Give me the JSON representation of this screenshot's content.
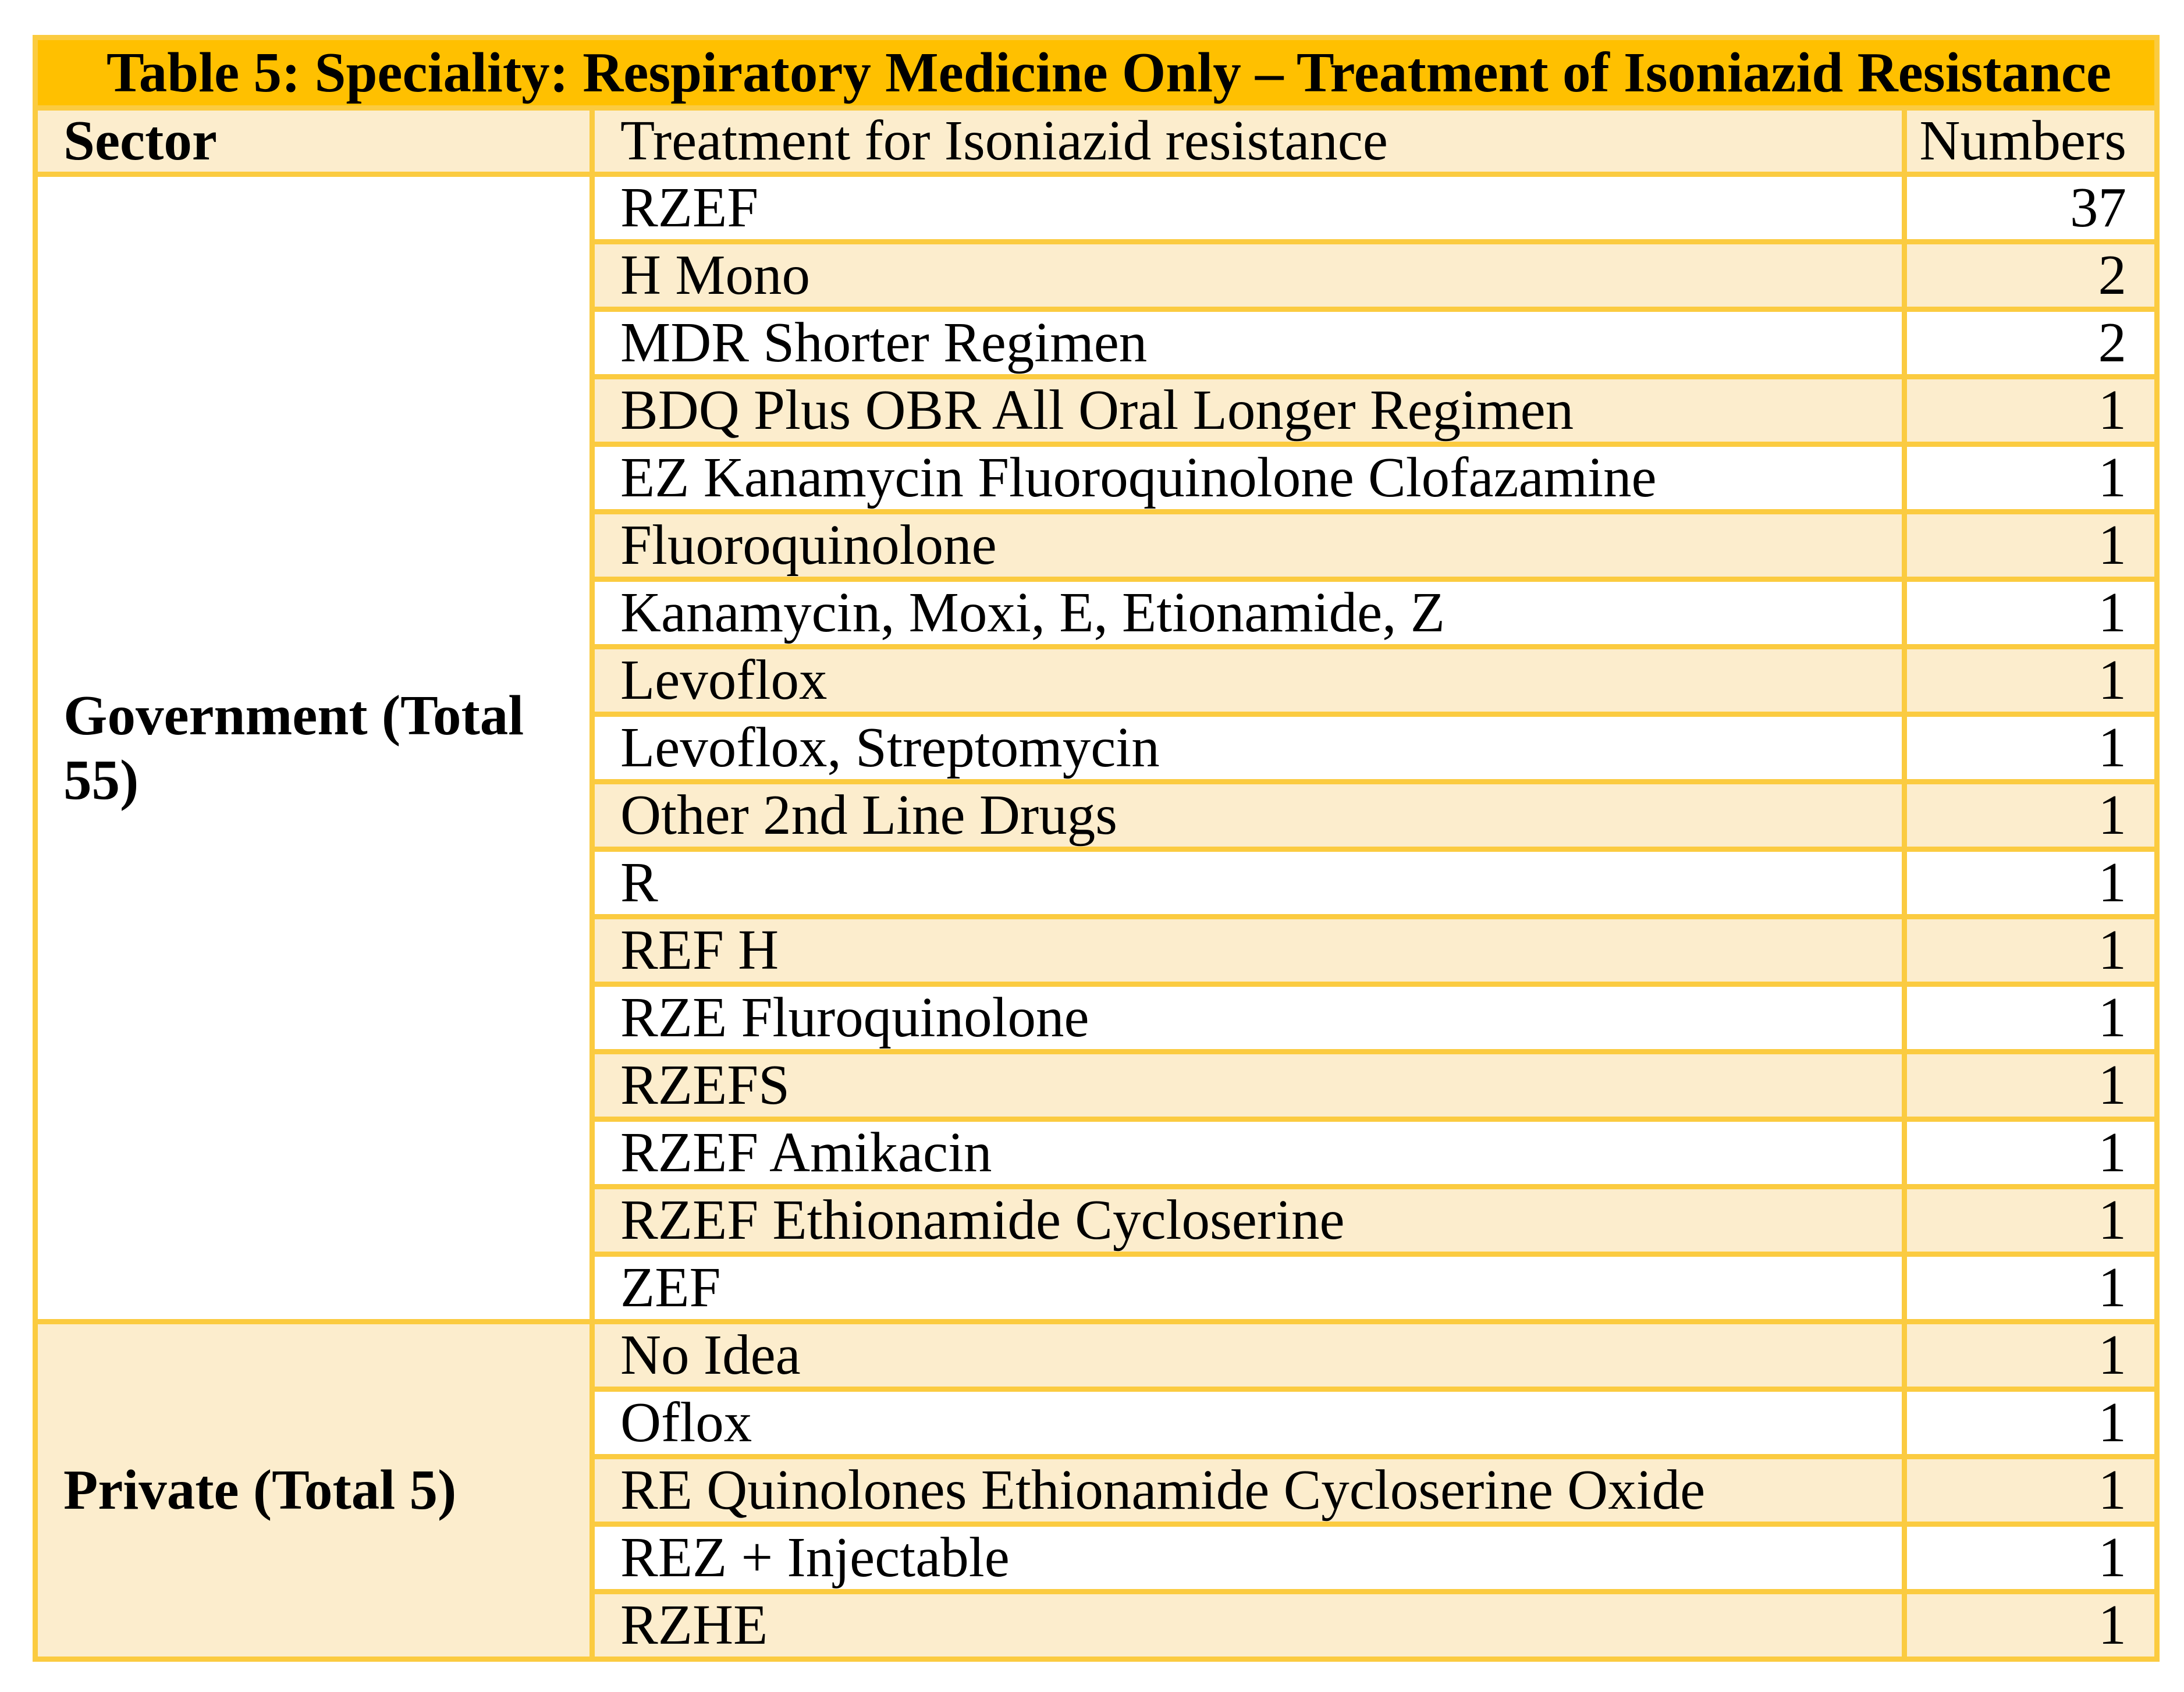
{
  "title": "Table 5: Speciality: Respiratory Medicine Only – Treatment of Isoniazid Resistance",
  "columns": {
    "sector": "Sector",
    "treatment": "Treatment for Isoniazid resistance",
    "numbers": "Numbers"
  },
  "sections": [
    {
      "sector": "Government (Total 55)",
      "sector_cell_shade": "white",
      "rows": [
        {
          "treatment": "RZEF",
          "number": "37"
        },
        {
          "treatment": "H Mono",
          "number": "2"
        },
        {
          "treatment": "MDR Shorter Regimen",
          "number": "2"
        },
        {
          "treatment": "BDQ Plus OBR All Oral Longer Regimen",
          "number": "1"
        },
        {
          "treatment": "EZ Kanamycin Fluoroquinolone Clofazamine",
          "number": "1"
        },
        {
          "treatment": "Fluoroquinolone",
          "number": "1"
        },
        {
          "treatment": "Kanamycin, Moxi, E, Etionamide, Z",
          "number": "1"
        },
        {
          "treatment": "Levoflox",
          "number": "1"
        },
        {
          "treatment": "Levoflox, Streptomycin",
          "number": "1"
        },
        {
          "treatment": "Other 2nd Line Drugs",
          "number": "1"
        },
        {
          "treatment": "R",
          "number": "1"
        },
        {
          "treatment": "REF H",
          "number": "1"
        },
        {
          "treatment": "RZE Fluroquinolone",
          "number": "1"
        },
        {
          "treatment": "RZEFS",
          "number": "1"
        },
        {
          "treatment": "RZEF Amikacin",
          "number": "1"
        },
        {
          "treatment": "RZEF Ethionamide Cycloserine",
          "number": "1"
        },
        {
          "treatment": "ZEF",
          "number": "1"
        }
      ]
    },
    {
      "sector": "Private (Total 5)",
      "sector_cell_shade": "cream",
      "rows": [
        {
          "treatment": "No Idea",
          "number": "1"
        },
        {
          "treatment": "Oflox",
          "number": "1"
        },
        {
          "treatment": "RE Quinolones Ethionamide Cycloserine Oxide",
          "number": "1"
        },
        {
          "treatment": "REZ + Injectable",
          "number": "1"
        },
        {
          "treatment": "RZHE",
          "number": "1"
        }
      ]
    }
  ],
  "colors": {
    "title_bg": "#FFC000",
    "grid_border": "#FBCB40",
    "band_cream": "#FCEDCD",
    "band_white": "#FFFFFF",
    "text": "#000000"
  }
}
